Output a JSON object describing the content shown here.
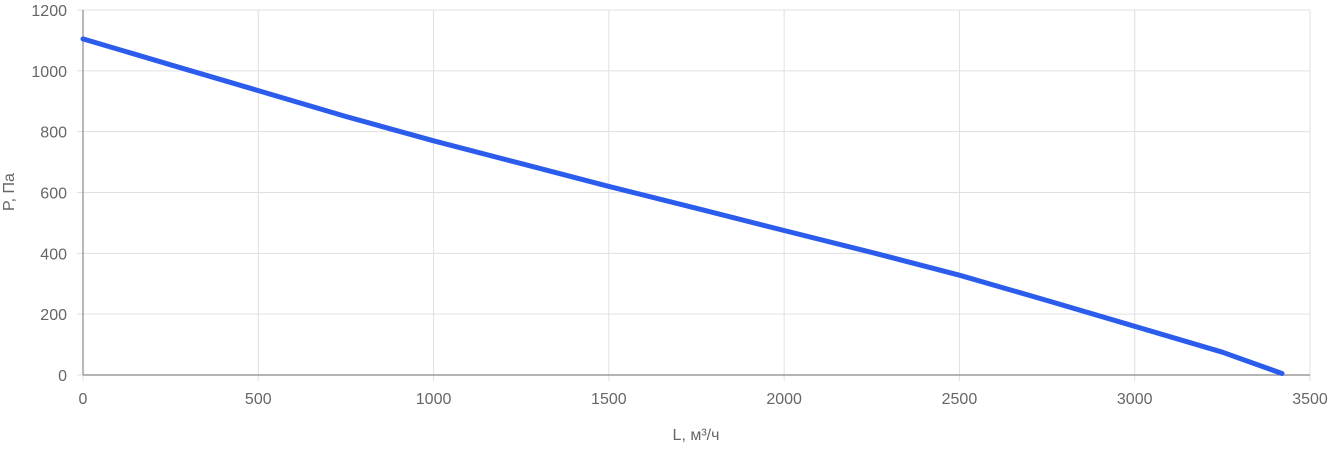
{
  "chart_data": {
    "type": "line",
    "title": "",
    "xlabel": "L, м³/ч",
    "ylabel": "P, Па",
    "xlim": [
      0,
      3500
    ],
    "ylim": [
      0,
      1200
    ],
    "x_ticks": [
      0,
      500,
      1000,
      1500,
      2000,
      2500,
      3000,
      3500
    ],
    "y_ticks": [
      0,
      200,
      400,
      600,
      800,
      1000,
      1200
    ],
    "x_tick_labels": [
      "0",
      "500",
      "1000",
      "1500",
      "2000",
      "2500",
      "3000",
      "3500"
    ],
    "y_tick_labels": [
      "0",
      "200",
      "400",
      "600",
      "800",
      "1000",
      "1200"
    ],
    "grid": true,
    "legend": "none",
    "line_color": "#2c5cec",
    "grid_color": "#e0e0e0",
    "axis_color": "#888888",
    "series": [
      {
        "x": [
          0,
          250,
          500,
          750,
          1000,
          1250,
          1500,
          1750,
          2000,
          2250,
          2500,
          2750,
          3000,
          3250,
          3420
        ],
        "values": [
          1105,
          1020,
          935,
          850,
          770,
          695,
          620,
          548,
          475,
          403,
          328,
          245,
          160,
          75,
          5
        ]
      }
    ]
  }
}
